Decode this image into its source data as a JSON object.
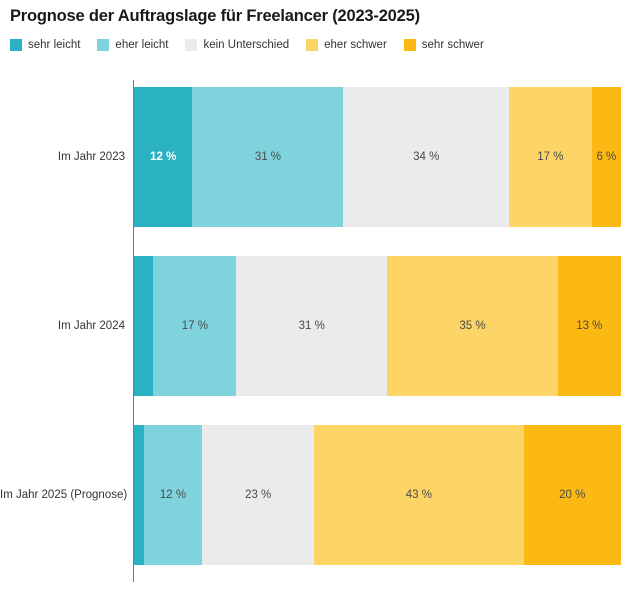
{
  "title": "Prognose der Auftragslage für Freelancer (2023-2025)",
  "legend": {
    "items": [
      {
        "label": "sehr leicht",
        "color": "#2ab1c2"
      },
      {
        "label": "eher leicht",
        "color": "#7fd3dc"
      },
      {
        "label": "kein Unterschied",
        "color": "#ebebeb"
      },
      {
        "label": "eher schwer",
        "color": "#fdd566"
      },
      {
        "label": "sehr schwer",
        "color": "#fdb913"
      }
    ]
  },
  "chart_data": {
    "type": "bar",
    "variant": "stacked-horizontal",
    "title": "Prognose der Auftragslage für Freelancer (2023-2025)",
    "legend_position": "top",
    "grid": false,
    "xlim": [
      0,
      100
    ],
    "value_unit": "%",
    "categories": [
      "Im Jahr 2023",
      "Im Jahr 2024",
      "Im Jahr 2025 (Prognose)"
    ],
    "series": [
      {
        "name": "sehr leicht",
        "color": "#2ab1c2",
        "label_color": "#ffffff",
        "label_bold": true,
        "values": [
          12,
          4,
          2
        ],
        "labels": [
          "12 %",
          "",
          ""
        ]
      },
      {
        "name": "eher leicht",
        "color": "#7fd3dc",
        "label_color": "#4a4a4a",
        "label_bold": false,
        "values": [
          31,
          17,
          12
        ],
        "labels": [
          "31 %",
          "17 %",
          "12 %"
        ]
      },
      {
        "name": "kein Unterschied",
        "color": "#ebebeb",
        "label_color": "#4a4a4a",
        "label_bold": false,
        "values": [
          34,
          31,
          23
        ],
        "labels": [
          "34 %",
          "31 %",
          "23 %"
        ]
      },
      {
        "name": "eher schwer",
        "color": "#fdd566",
        "label_color": "#4a4a4a",
        "label_bold": false,
        "values": [
          17,
          35,
          43
        ],
        "labels": [
          "17 %",
          "35 %",
          "43 %"
        ]
      },
      {
        "name": "sehr schwer",
        "color": "#fdb913",
        "label_color": "#4a4a4a",
        "label_bold": false,
        "values": [
          6,
          13,
          20
        ],
        "labels": [
          "6 %",
          "13 %",
          "20 %"
        ]
      }
    ]
  }
}
